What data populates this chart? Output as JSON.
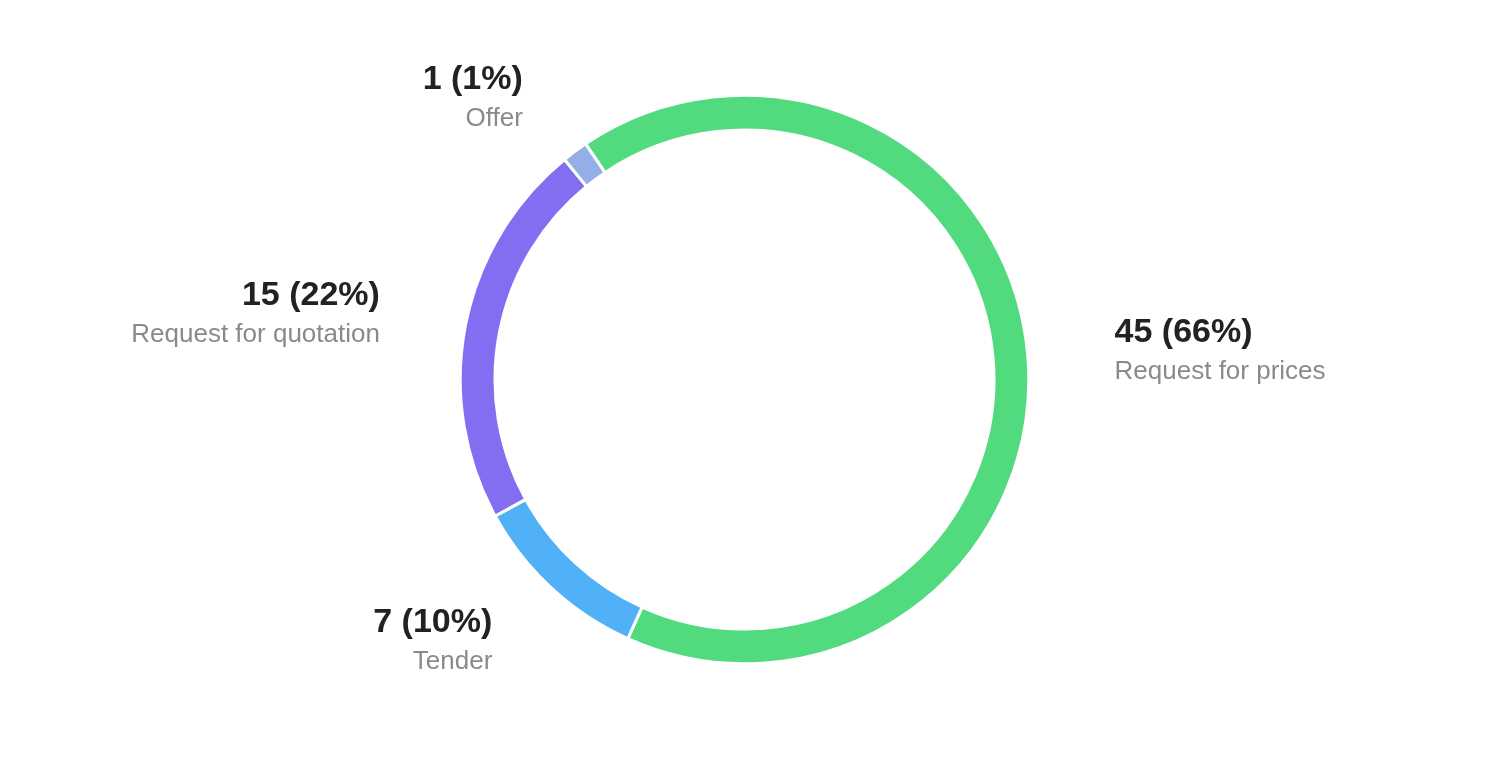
{
  "chart_data": {
    "type": "donut",
    "categories": [
      "Request for prices",
      "Tender",
      "Request for quotation",
      "Offer"
    ],
    "values": [
      45,
      7,
      15,
      1
    ],
    "colors": [
      "#52db7e",
      "#51b1f8",
      "#836ef2",
      "#94aee6"
    ],
    "value_labels": [
      "45 (66%)",
      "7 (10%)",
      "15 (22%)",
      "1 (1%)"
    ]
  }
}
